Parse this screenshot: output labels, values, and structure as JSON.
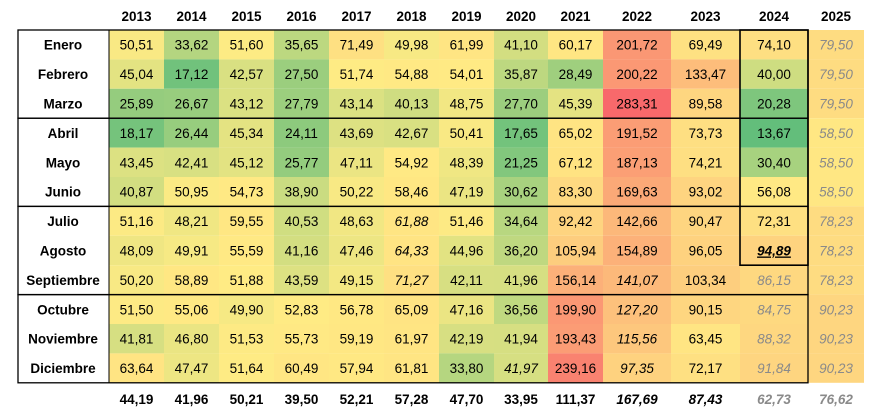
{
  "chart_data": {
    "type": "heatmap",
    "columns": [
      "2013",
      "2014",
      "2015",
      "2016",
      "2017",
      "2018",
      "2019",
      "2020",
      "2021",
      "2022",
      "2023",
      "2024",
      "2025"
    ],
    "rows": [
      "Enero",
      "Febrero",
      "Marzo",
      "Abril",
      "Mayo",
      "Junio",
      "Julio",
      "Agosto",
      "Septiembre",
      "Octubre",
      "Noviembre",
      "Diciembre"
    ],
    "values": [
      [
        "50,51",
        "33,62",
        "51,60",
        "35,65",
        "71,49",
        "49,98",
        "61,99",
        "41,10",
        "60,17",
        "201,72",
        "69,49",
        "74,10",
        "79,50"
      ],
      [
        "45,04",
        "17,12",
        "42,57",
        "27,50",
        "51,74",
        "54,88",
        "54,01",
        "35,87",
        "28,49",
        "200,22",
        "133,47",
        "40,00",
        "79,50"
      ],
      [
        "25,89",
        "26,67",
        "43,12",
        "27,79",
        "43,14",
        "40,13",
        "48,75",
        "27,70",
        "45,39",
        "283,31",
        "89,58",
        "20,28",
        "79,50"
      ],
      [
        "18,17",
        "26,44",
        "45,34",
        "24,11",
        "43,69",
        "42,67",
        "50,41",
        "17,65",
        "65,02",
        "191,52",
        "73,73",
        "13,67",
        "58,50"
      ],
      [
        "43,45",
        "42,41",
        "45,12",
        "25,77",
        "47,11",
        "54,92",
        "48,39",
        "21,25",
        "67,12",
        "187,13",
        "74,21",
        "30,40",
        "58,50"
      ],
      [
        "40,87",
        "50,95",
        "54,73",
        "38,90",
        "50,22",
        "58,46",
        "47,19",
        "30,62",
        "83,30",
        "169,63",
        "93,02",
        "56,08",
        "58,50"
      ],
      [
        "51,16",
        "48,21",
        "59,55",
        "40,53",
        "48,63",
        "61,88",
        "51,46",
        "34,64",
        "92,42",
        "142,66",
        "90,47",
        "72,31",
        "78,23"
      ],
      [
        "48,09",
        "49,91",
        "55,59",
        "41,16",
        "47,46",
        "64,33",
        "44,96",
        "36,20",
        "105,94",
        "154,89",
        "96,05",
        "94,89",
        "78,23"
      ],
      [
        "50,20",
        "58,89",
        "51,88",
        "43,59",
        "49,15",
        "71,27",
        "42,11",
        "41,96",
        "156,14",
        "141,07",
        "103,34",
        "86,15",
        "78,23"
      ],
      [
        "51,50",
        "55,06",
        "49,90",
        "52,83",
        "56,78",
        "65,09",
        "47,16",
        "36,56",
        "199,90",
        "127,20",
        "90,15",
        "84,75",
        "90,23"
      ],
      [
        "41,81",
        "46,80",
        "51,53",
        "55,73",
        "59,19",
        "61,97",
        "42,19",
        "41,94",
        "193,43",
        "115,56",
        "63,45",
        "88,32",
        "90,23"
      ],
      [
        "63,64",
        "47,47",
        "51,64",
        "60,49",
        "57,94",
        "61,81",
        "33,80",
        "41,97",
        "239,16",
        "97,35",
        "72,17",
        "91,84",
        "90,23"
      ]
    ],
    "column_averages": [
      "44,19",
      "41,96",
      "50,21",
      "39,50",
      "52,21",
      "57,28",
      "47,70",
      "33,95",
      "111,37",
      "167,69",
      "87,43",
      "62,73",
      "76,62"
    ],
    "colors": {
      "low": "#63be7b",
      "mid": "#ffeb84",
      "high": "#f8696b"
    }
  }
}
